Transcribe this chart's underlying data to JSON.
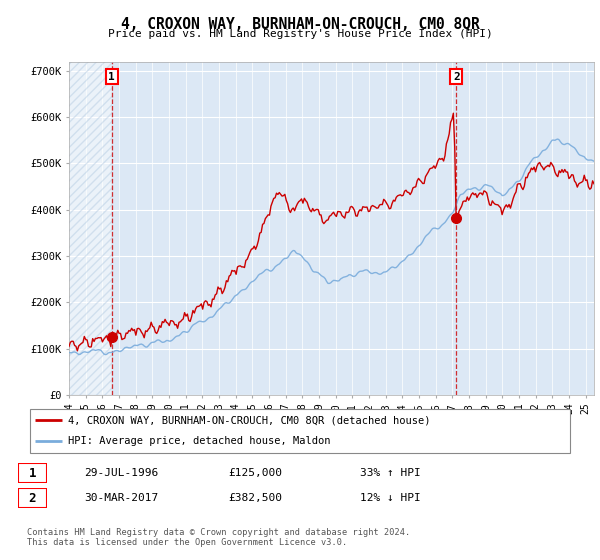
{
  "title": "4, CROXON WAY, BURNHAM-ON-CROUCH, CM0 8QR",
  "subtitle": "Price paid vs. HM Land Registry's House Price Index (HPI)",
  "ylim": [
    0,
    720000
  ],
  "yticks": [
    0,
    100000,
    200000,
    300000,
    400000,
    500000,
    600000,
    700000
  ],
  "ytick_labels": [
    "£0",
    "£100K",
    "£200K",
    "£300K",
    "£400K",
    "£500K",
    "£600K",
    "£700K"
  ],
  "hpi_color": "#7aacdc",
  "sale_color": "#cc0000",
  "marker_color": "#cc0000",
  "bg_color": "#dce8f5",
  "grid_color": "#ffffff",
  "sale1_x": 1996.57,
  "sale1_y": 125000,
  "sale2_x": 2017.24,
  "sale2_y": 382500,
  "legend_sale": "4, CROXON WAY, BURNHAM-ON-CROUCH, CM0 8QR (detached house)",
  "legend_hpi": "HPI: Average price, detached house, Maldon",
  "label1": "1",
  "label2": "2",
  "table_row1": [
    "1",
    "29-JUL-1996",
    "£125,000",
    "33% ↑ HPI"
  ],
  "table_row2": [
    "2",
    "30-MAR-2017",
    "£382,500",
    "12% ↓ HPI"
  ],
  "footer": "Contains HM Land Registry data © Crown copyright and database right 2024.\nThis data is licensed under the Open Government Licence v3.0.",
  "xmin": 1994,
  "xmax": 2025.5
}
